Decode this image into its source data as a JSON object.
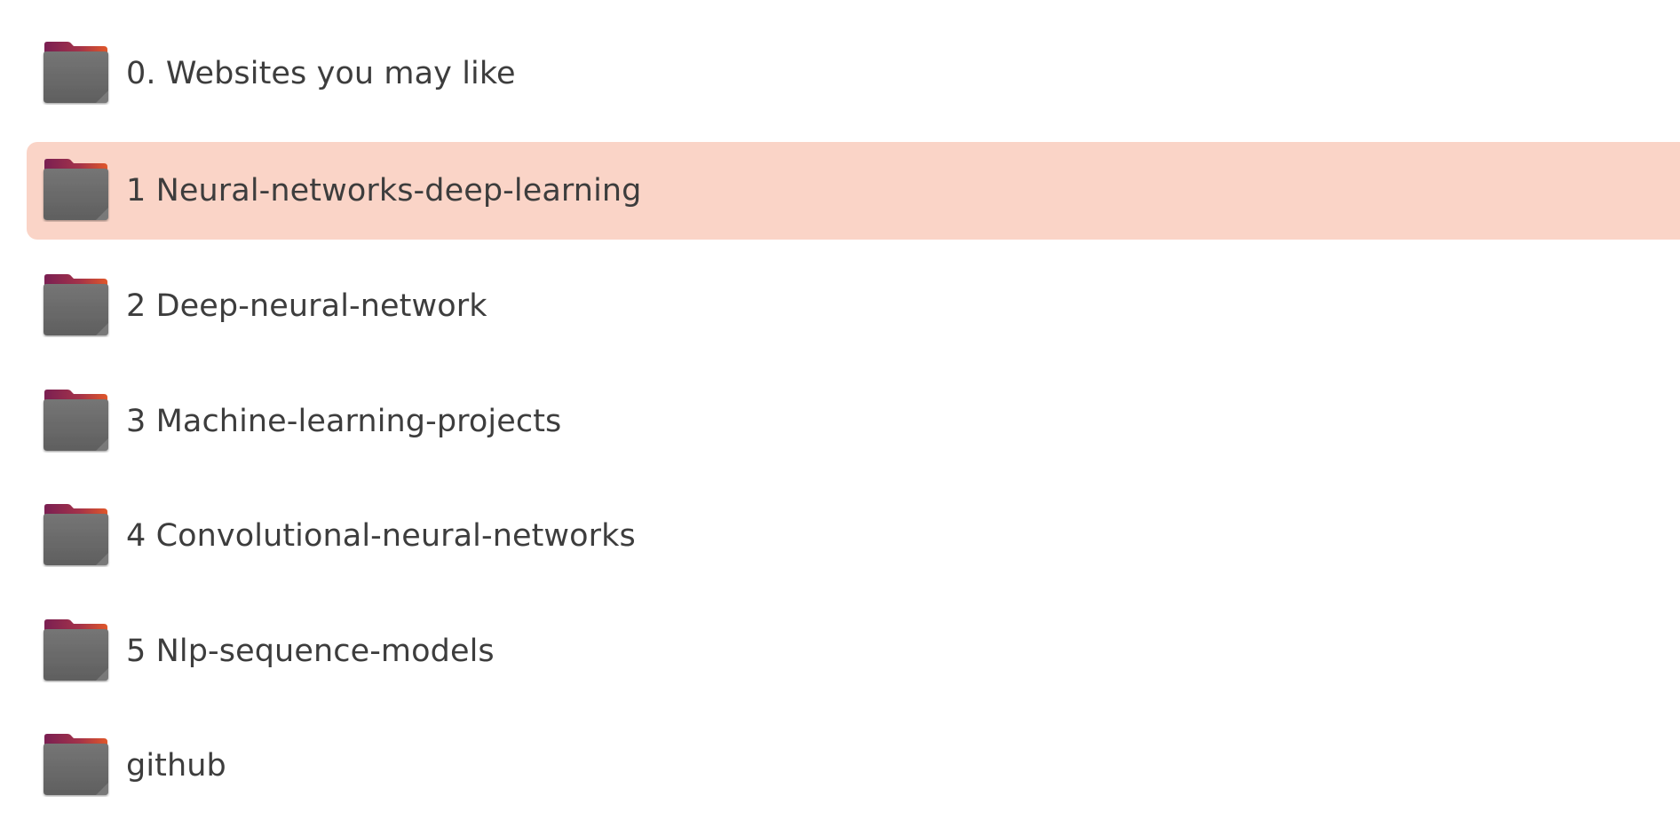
{
  "file_list": {
    "items": [
      {
        "label": "0. Websites you may like",
        "icon": "folder-icon",
        "selected": false
      },
      {
        "label": "1 Neural-networks-deep-learning",
        "icon": "folder-icon",
        "selected": true
      },
      {
        "label": "2 Deep-neural-network",
        "icon": "folder-icon",
        "selected": false
      },
      {
        "label": "3 Machine-learning-projects",
        "icon": "folder-icon",
        "selected": false
      },
      {
        "label": "4 Convolutional-neural-networks",
        "icon": "folder-icon",
        "selected": false
      },
      {
        "label": "5 Nlp-sequence-models",
        "icon": "folder-icon",
        "selected": false
      },
      {
        "label": "github",
        "icon": "folder-icon",
        "selected": false
      }
    ]
  },
  "colors": {
    "selection_bg": "#fad4c7",
    "folder_body": "#6e6e6e",
    "folder_tab_start": "#7a1f52",
    "folder_tab_end": "#e0572a",
    "text": "#3d3d3d"
  }
}
